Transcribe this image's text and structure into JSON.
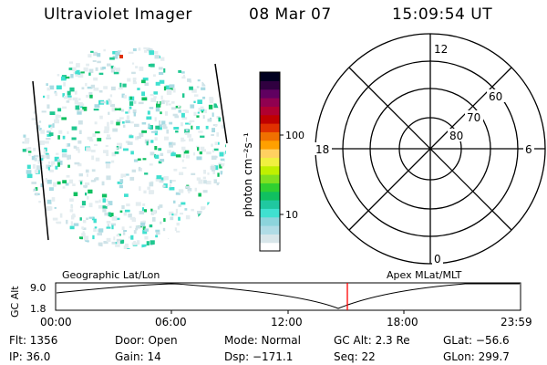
{
  "header": {
    "title": "Ultraviolet Imager",
    "date": "08 Mar 07",
    "time": "15:09:54 UT"
  },
  "colorbar": {
    "unit_label": "photon cm⁻²s⁻¹",
    "ticks": [
      "100",
      "10"
    ],
    "colors": [
      "#ffffff",
      "#d8e6ea",
      "#b0dce6",
      "#8cd4dc",
      "#40e0d0",
      "#20c8a0",
      "#10c060",
      "#30d030",
      "#80e020",
      "#c0f000",
      "#f0f040",
      "#ffd060",
      "#ffa000",
      "#f07000",
      "#e03000",
      "#c00000",
      "#b00030",
      "#900050",
      "#600060",
      "#300040",
      "#000020"
    ]
  },
  "polar": {
    "labels": [
      "12",
      "18",
      "6",
      "0",
      "60",
      "70",
      "80"
    ]
  },
  "timeline": {
    "left_label": "Geographic Lat/Lon",
    "right_label": "Apex MLat/MLT",
    "axis_label": "GC Alt",
    "y_ticks": [
      "9.0",
      "1.8"
    ],
    "x_ticks": [
      "00:00",
      "06:00",
      "12:00",
      "18:00",
      "23:59"
    ],
    "marker_color": "#ff0000"
  },
  "info": {
    "flt": "Flt: 1356",
    "ip": "IP: 36.0",
    "door": "Door: Open",
    "gain": "Gain: 14",
    "mode": "Mode: Normal",
    "dsp": "Dsp: −171.1",
    "gc_alt": "GC Alt: 2.3 Re",
    "seq": "Seq: 22",
    "glat": "GLat: −56.6",
    "glon": "GLon: 299.7"
  }
}
